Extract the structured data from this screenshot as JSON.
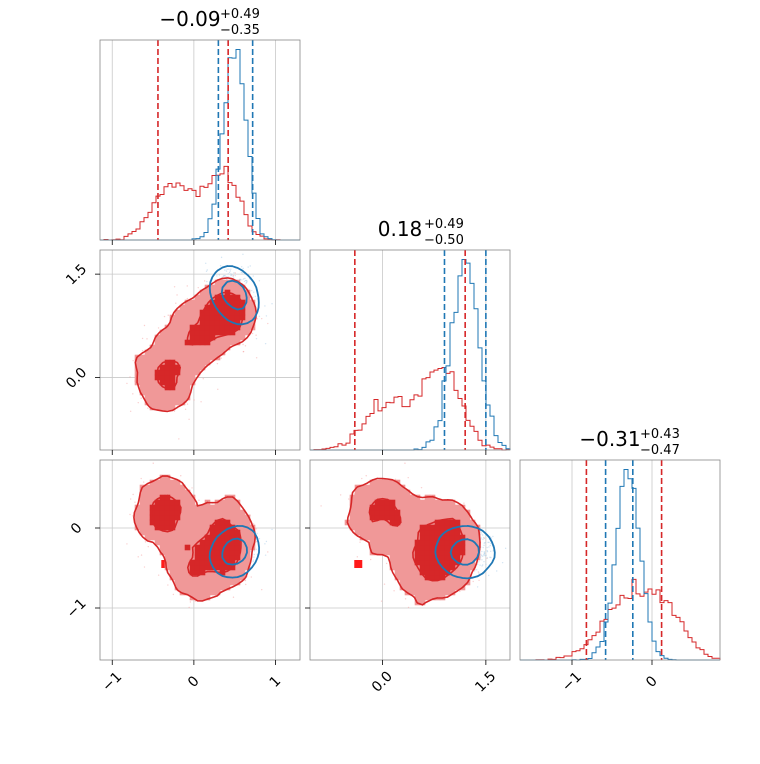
{
  "chart_data": {
    "type": "corner",
    "grid": true,
    "colors": {
      "blue": "#1f77b4",
      "red": "#d62728",
      "red_fill_outer": "#f09898",
      "marker_blue": "#0000ff",
      "marker_red": "#ff1a1a"
    },
    "parameters": [
      {
        "id": "p1",
        "title_value": "−0.09",
        "title_plus": "+0.49",
        "title_minus": "−0.35",
        "range": [
          -1.15,
          1.3
        ],
        "ticks": [
          -1,
          0,
          1
        ],
        "tick_labels": [
          "−1",
          "0",
          "1"
        ]
      },
      {
        "id": "p2",
        "title_value": "0.18",
        "title_plus": "+0.49",
        "title_minus": "−0.50",
        "range": [
          -1.05,
          1.85
        ],
        "ticks": [
          0.0,
          1.5
        ],
        "tick_labels": [
          "0.0",
          "1.5"
        ]
      },
      {
        "id": "p3",
        "title_value": "−0.31",
        "title_plus": "+0.43",
        "title_minus": "−0.47",
        "range": [
          -1.65,
          0.85
        ],
        "ticks": [
          -1,
          0
        ],
        "tick_labels": [
          "−1",
          "0"
        ]
      }
    ],
    "series": [
      {
        "color": "blue",
        "kind": "posterior_narrow",
        "means": [
          0.5,
          1.2,
          -0.3
        ],
        "sds": [
          0.14,
          0.2,
          0.15
        ],
        "quantiles": [
          [
            0.3,
            0.72
          ],
          [
            0.9,
            1.5
          ],
          [
            -0.58,
            -0.24
          ]
        ],
        "corr": {
          "p1_p2": -0.3,
          "p1_p3": 0.2,
          "p2_p3": 0.2
        }
      },
      {
        "color": "red",
        "kind": "posterior_multimodal",
        "modes": [
          {
            "weight": 0.32,
            "center": [
              -0.35,
              0.0,
              0.18
            ],
            "sd": [
              0.2,
              0.3,
              0.25
            ]
          },
          {
            "weight": 0.28,
            "center": [
              0.0,
              0.6,
              -0.45
            ],
            "sd": [
              0.2,
              0.3,
              0.3
            ]
          },
          {
            "weight": 0.4,
            "center": [
              0.4,
              0.95,
              -0.2
            ],
            "sd": [
              0.18,
              0.25,
              0.3
            ]
          }
        ],
        "quantiles": [
          [
            -0.44,
            0.42
          ],
          [
            -0.4,
            1.2
          ],
          [
            -0.82,
            0.12
          ]
        ]
      }
    ],
    "markers": {
      "blue": {
        "p1": 0.52,
        "p2": 1.12,
        "p3": -0.35
      },
      "red": [
        {
          "p1": -0.35,
          "p2": -0.05,
          "p3": 0.17
        },
        {
          "p1": -0.35,
          "p2": -0.35,
          "p3": -0.45
        },
        {
          "p1": 0.05,
          "p2": 0.8,
          "p3": -0.75
        },
        {
          "p1": 0.48,
          "p2": 0.62,
          "p3": -0.2
        }
      ]
    }
  }
}
